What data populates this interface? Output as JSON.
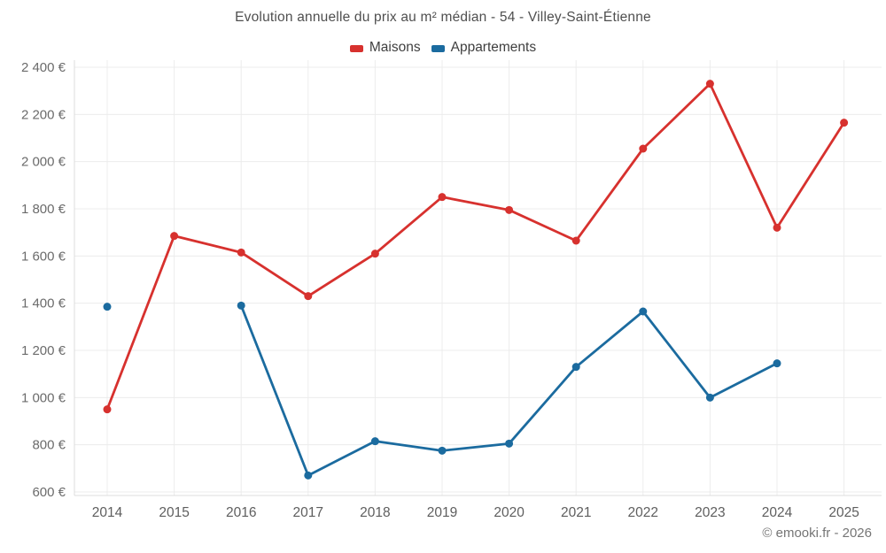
{
  "title": "Evolution annuelle du prix au m² médian - 54 - Villey-Saint-Étienne",
  "legend": [
    {
      "label": "Maisons",
      "color": "#d7312e"
    },
    {
      "label": "Appartements",
      "color": "#1b6b9f"
    }
  ],
  "footer": "© emooki.fr - 2026",
  "chart_data": {
    "type": "line",
    "title": "Evolution annuelle du prix au m² médian - 54 - Villey-Saint-Étienne",
    "categories": [
      "2014",
      "2015",
      "2016",
      "2017",
      "2018",
      "2019",
      "2020",
      "2021",
      "2022",
      "2023",
      "2024",
      "2025"
    ],
    "series": [
      {
        "name": "Maisons",
        "color": "#d7312e",
        "values": [
          950,
          1685,
          1615,
          1430,
          1610,
          1850,
          1795,
          1665,
          2055,
          2330,
          1720,
          2165
        ]
      },
      {
        "name": "Appartements",
        "color": "#1b6b9f",
        "values": [
          1385,
          null,
          1390,
          670,
          815,
          775,
          805,
          1130,
          1365,
          1000,
          1145,
          null
        ]
      }
    ],
    "xlabel": "",
    "ylabel": "",
    "ylim": [
      600,
      2400
    ],
    "ytick_step": 200,
    "ytick_labels": [
      "600 €",
      "800 €",
      "1 000 €",
      "1 200 €",
      "1 400 €",
      "1 600 €",
      "1 800 €",
      "2 000 €",
      "2 200 €",
      "2 400 €"
    ],
    "currency_suffix": " €",
    "grid": true,
    "legend_position": "top"
  }
}
